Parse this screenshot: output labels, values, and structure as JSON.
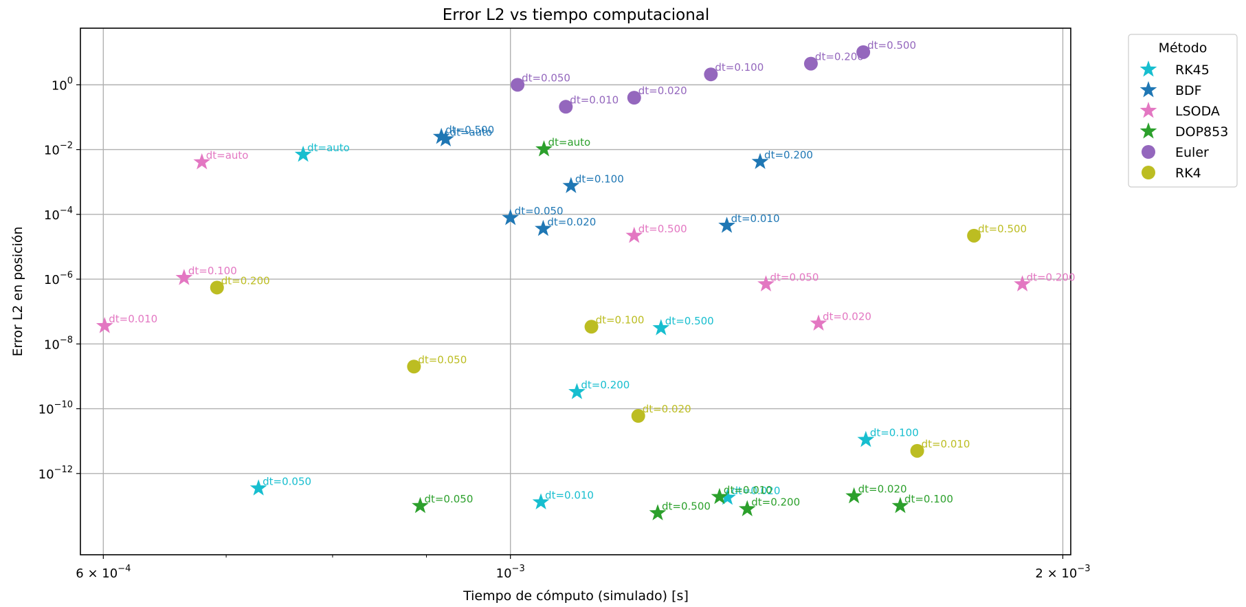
{
  "chart_data": {
    "type": "scatter",
    "title": "Error L2 vs tiempo computacional",
    "xlabel": "Tiempo de cómputo (simulado) [s]",
    "ylabel": "Error L2 en posición",
    "xscale": "log",
    "yscale": "log",
    "xlim": [
      0.000583,
      0.00202
    ],
    "ylim": [
      3.1e-15,
      56
    ],
    "grid": true,
    "legend": {
      "title": "Método",
      "placement": "outside-top-right"
    },
    "x_ticks": [
      {
        "value": 0.0006,
        "base": "6 × 10",
        "exp": "−4"
      },
      {
        "value": 0.001,
        "base": "10",
        "exp": "−3"
      },
      {
        "value": 0.002,
        "base": "2 × 10",
        "exp": "−3"
      }
    ],
    "x_minor_ticks": [
      0.0007,
      0.0008,
      0.0009,
      0.003
    ],
    "y_ticks": [
      {
        "value": 1,
        "base": "10",
        "exp": "0"
      },
      {
        "value": 0.01,
        "base": "10",
        "exp": "−2"
      },
      {
        "value": 0.0001,
        "base": "10",
        "exp": "−4"
      },
      {
        "value": 1e-06,
        "base": "10",
        "exp": "−6"
      },
      {
        "value": 1e-08,
        "base": "10",
        "exp": "−8"
      },
      {
        "value": 1e-10,
        "base": "10",
        "exp": "−10"
      },
      {
        "value": 1e-12,
        "base": "10",
        "exp": "−12"
      }
    ],
    "series": [
      {
        "name": "RK45",
        "marker": "star",
        "color": "#17becf",
        "points": [
          {
            "x": 0.000771,
            "y": 0.007,
            "label": "dt=auto"
          },
          {
            "x": 0.000729,
            "y": 3.5e-13,
            "label": "dt=0.050"
          },
          {
            "x": 0.001039,
            "y": 1.3e-13,
            "label": "dt=0.010"
          },
          {
            "x": 0.001208,
            "y": 3.1e-08,
            "label": "dt=0.500"
          },
          {
            "x": 0.001087,
            "y": 3.3e-10,
            "label": "dt=0.200"
          },
          {
            "x": 0.001313,
            "y": 1.8e-13,
            "label": "dt=0.020"
          },
          {
            "x": 0.001562,
            "y": 1.1e-11,
            "label": "dt=0.100"
          }
        ]
      },
      {
        "name": "BDF",
        "marker": "star",
        "color": "#1f77b4",
        "points": [
          {
            "x": 0.000922,
            "y": 0.021,
            "label": "dt=auto"
          },
          {
            "x": 0.000917,
            "y": 0.025,
            "label": "dt=0.500"
          },
          {
            "x": 0.001,
            "y": 7.8e-05,
            "label": "dt=0.050"
          },
          {
            "x": 0.001042,
            "y": 3.6e-05,
            "label": "dt=0.020"
          },
          {
            "x": 0.001079,
            "y": 0.00076,
            "label": "dt=0.100"
          },
          {
            "x": 0.001312,
            "y": 4.5e-05,
            "label": "dt=0.010"
          },
          {
            "x": 0.001368,
            "y": 0.0042,
            "label": "dt=0.200"
          }
        ]
      },
      {
        "name": "LSODA",
        "marker": "star",
        "color": "#e377c2",
        "points": [
          {
            "x": 0.000679,
            "y": 0.0041,
            "label": "dt=auto"
          },
          {
            "x": 0.000601,
            "y": 3.6e-08,
            "label": "dt=0.010"
          },
          {
            "x": 0.000664,
            "y": 1.1e-06,
            "label": "dt=0.100"
          },
          {
            "x": 0.001168,
            "y": 2.2e-05,
            "label": "dt=0.500"
          },
          {
            "x": 0.001378,
            "y": 7e-07,
            "label": "dt=0.050"
          },
          {
            "x": 0.001472,
            "y": 4.3e-08,
            "label": "dt=0.020"
          },
          {
            "x": 0.001901,
            "y": 7e-07,
            "label": "dt=0.200"
          }
        ]
      },
      {
        "name": "DOP853",
        "marker": "star",
        "color": "#2ca02c",
        "points": [
          {
            "x": 0.001043,
            "y": 0.0103,
            "label": "dt=auto"
          },
          {
            "x": 0.000893,
            "y": 1e-13,
            "label": "dt=0.050"
          },
          {
            "x": 0.001203,
            "y": 6e-14,
            "label": "dt=0.500"
          },
          {
            "x": 0.0013,
            "y": 1.9e-13,
            "label": "dt=0.010"
          },
          {
            "x": 0.001346,
            "y": 8e-14,
            "label": "dt=0.200"
          },
          {
            "x": 0.001539,
            "y": 2e-13,
            "label": "dt=0.020"
          },
          {
            "x": 0.001631,
            "y": 1e-13,
            "label": "dt=0.100"
          }
        ]
      },
      {
        "name": "Euler",
        "marker": "circle",
        "color": "#9467bd",
        "points": [
          {
            "x": 0.001009,
            "y": 1,
            "label": "dt=0.050"
          },
          {
            "x": 0.001072,
            "y": 0.21,
            "label": "dt=0.010"
          },
          {
            "x": 0.001168,
            "y": 0.4,
            "label": "dt=0.020"
          },
          {
            "x": 0.001286,
            "y": 2.1,
            "label": "dt=0.100"
          },
          {
            "x": 0.001458,
            "y": 4.5,
            "label": "dt=0.200"
          },
          {
            "x": 0.001557,
            "y": 10.2,
            "label": "dt=0.500"
          }
        ]
      },
      {
        "name": "RK4",
        "marker": "circle",
        "color": "#bcbd22",
        "points": [
          {
            "x": 0.000692,
            "y": 5.5e-07,
            "label": "dt=0.200"
          },
          {
            "x": 0.000886,
            "y": 2e-09,
            "label": "dt=0.050"
          },
          {
            "x": 0.001107,
            "y": 3.4e-08,
            "label": "dt=0.100"
          },
          {
            "x": 0.001174,
            "y": 6e-11,
            "label": "dt=0.020"
          },
          {
            "x": 0.001666,
            "y": 5e-12,
            "label": "dt=0.010"
          },
          {
            "x": 0.001789,
            "y": 2.2e-05,
            "label": "dt=0.500"
          }
        ]
      }
    ]
  }
}
